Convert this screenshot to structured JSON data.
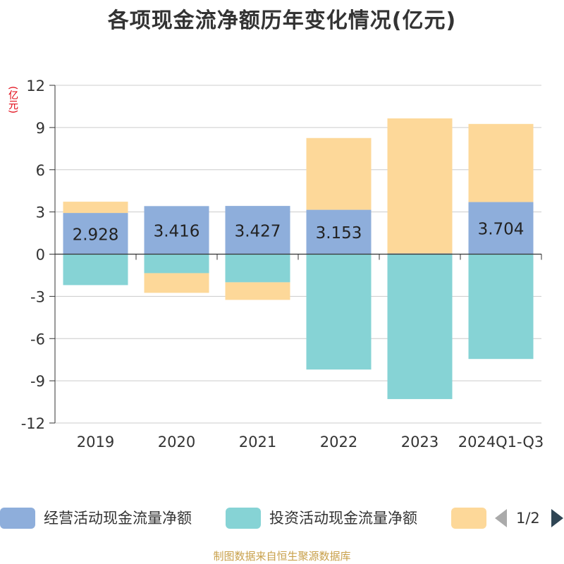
{
  "title": "各项现金流净额历年变化情况(亿元)",
  "unit_label": "(亿元)",
  "source": "制图数据来自恒生聚源数据库",
  "legend": {
    "items": [
      {
        "label": "经营活动现金流量净额",
        "color": "#8eaedb"
      },
      {
        "label": "投资活动现金流量净额",
        "color": "#86d3d5"
      },
      {
        "label": "",
        "color": "#fdd899"
      }
    ],
    "page": "1/2"
  },
  "chart_data": {
    "type": "bar",
    "stacked": true,
    "categories": [
      "2019",
      "2020",
      "2021",
      "2022",
      "2023",
      "2024Q1-Q3"
    ],
    "ylim": [
      -12,
      12
    ],
    "yticks": [
      "12",
      "9",
      "6",
      "3",
      "0",
      "-3",
      "-6",
      "-9",
      "-12"
    ],
    "grid": true,
    "series": [
      {
        "name": "经营活动现金流量净额",
        "color": "#8eaedb",
        "values": [
          2.928,
          3.416,
          3.427,
          3.153,
          0.05,
          3.704
        ],
        "labels": [
          "2.928",
          "3.416",
          "3.427",
          "3.153",
          "",
          "3.704"
        ]
      },
      {
        "name": "投资活动现金流量净额",
        "color": "#86d3d5",
        "values": [
          -2.2,
          -1.35,
          -2.0,
          -8.2,
          -10.3,
          -7.45
        ]
      },
      {
        "name": "",
        "color": "#fdd899",
        "values": [
          0.8,
          -1.4,
          -1.25,
          5.1,
          9.6,
          5.55
        ]
      }
    ]
  }
}
